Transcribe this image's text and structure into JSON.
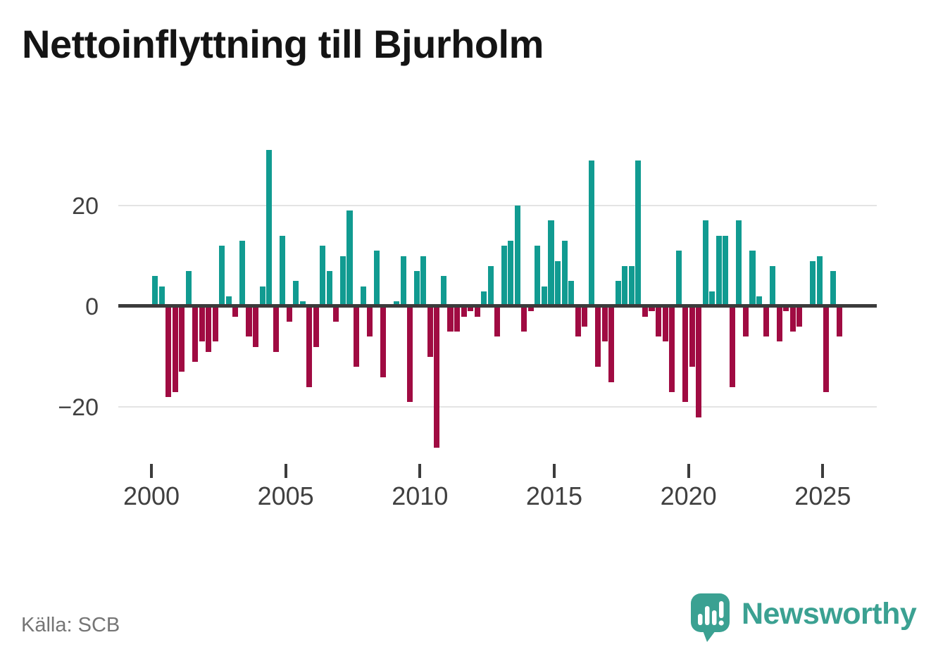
{
  "title": "Nettoinflyttning till Bjurholm",
  "source": "Källa: SCB",
  "branding": {
    "logo_text": "Newsworthy",
    "logo_color": "#3ba192",
    "logo_icon": "speech-bubble-bar-chart"
  },
  "colors": {
    "positive": "#119b91",
    "negative": "#a00b42",
    "axis": "#3b3b3b",
    "grid": "#e4e4e4",
    "text": "#404040"
  },
  "y_axis": {
    "labels": [
      "20",
      "0",
      "−20"
    ],
    "values": [
      20,
      0,
      -20
    ]
  },
  "x_axis": {
    "labels": [
      "2000",
      "2005",
      "2010",
      "2015",
      "2020",
      "2025"
    ],
    "years": [
      2000,
      2005,
      2010,
      2015,
      2020,
      2025
    ]
  },
  "chart_data": {
    "type": "bar",
    "title": "Nettoinflyttning till Bjurholm",
    "x_unit": "quarter",
    "start": "2000Q1",
    "end": "2025Q3",
    "grid": "y-only",
    "legend": "none",
    "ylim": [
      -30,
      33
    ],
    "yticks": [
      -20,
      0,
      20
    ],
    "xticks": [
      2000,
      2005,
      2010,
      2015,
      2020,
      2025
    ],
    "positive_color": "#119b91",
    "negative_color": "#a00b42",
    "categories": [
      "2000Q1",
      "2000Q2",
      "2000Q3",
      "2000Q4",
      "2001Q1",
      "2001Q2",
      "2001Q3",
      "2001Q4",
      "2002Q1",
      "2002Q2",
      "2002Q3",
      "2002Q4",
      "2003Q1",
      "2003Q2",
      "2003Q3",
      "2003Q4",
      "2004Q1",
      "2004Q2",
      "2004Q3",
      "2004Q4",
      "2005Q1",
      "2005Q2",
      "2005Q3",
      "2005Q4",
      "2006Q1",
      "2006Q2",
      "2006Q3",
      "2006Q4",
      "2007Q1",
      "2007Q2",
      "2007Q3",
      "2007Q4",
      "2008Q1",
      "2008Q2",
      "2008Q3",
      "2008Q4",
      "2009Q1",
      "2009Q2",
      "2009Q3",
      "2009Q4",
      "2010Q1",
      "2010Q2",
      "2010Q3",
      "2010Q4",
      "2011Q1",
      "2011Q2",
      "2011Q3",
      "2011Q4",
      "2012Q1",
      "2012Q2",
      "2012Q3",
      "2012Q4",
      "2013Q1",
      "2013Q2",
      "2013Q3",
      "2013Q4",
      "2014Q1",
      "2014Q2",
      "2014Q3",
      "2014Q4",
      "2015Q1",
      "2015Q2",
      "2015Q3",
      "2015Q4",
      "2016Q1",
      "2016Q2",
      "2016Q3",
      "2016Q4",
      "2017Q1",
      "2017Q2",
      "2017Q3",
      "2017Q4",
      "2018Q1",
      "2018Q2",
      "2018Q3",
      "2018Q4",
      "2019Q1",
      "2019Q2",
      "2019Q3",
      "2019Q4",
      "2020Q1",
      "2020Q2",
      "2020Q3",
      "2020Q4",
      "2021Q1",
      "2021Q2",
      "2021Q3",
      "2021Q4",
      "2022Q1",
      "2022Q2",
      "2022Q3",
      "2022Q4",
      "2023Q1",
      "2023Q2",
      "2023Q3",
      "2023Q4",
      "2024Q1",
      "2024Q2",
      "2024Q3",
      "2024Q4",
      "2025Q1",
      "2025Q2",
      "2025Q3"
    ],
    "values": [
      6,
      4,
      -18,
      -17,
      -13,
      7,
      -11,
      -7,
      -9,
      -7,
      12,
      2,
      -2,
      13,
      -6,
      -8,
      4,
      31,
      -9,
      14,
      -3,
      5,
      1,
      -16,
      -8,
      12,
      7,
      -3,
      10,
      19,
      -12,
      4,
      -6,
      11,
      -14,
      0,
      1,
      10,
      -19,
      7,
      10,
      -10,
      -28,
      6,
      -5,
      -5,
      -2,
      -1,
      -2,
      3,
      8,
      -6,
      12,
      13,
      20,
      -5,
      -1,
      12,
      4,
      17,
      9,
      13,
      5,
      -6,
      -4,
      29,
      -12,
      -7,
      -15,
      5,
      8,
      8,
      29,
      -2,
      -1,
      -6,
      -7,
      -17,
      11,
      -19,
      -12,
      -22,
      17,
      3,
      14,
      14,
      -16,
      17,
      -6,
      11,
      2,
      -6,
      8,
      -7,
      -1,
      -5,
      -4,
      0,
      9,
      10,
      -17,
      7,
      -6
    ]
  }
}
